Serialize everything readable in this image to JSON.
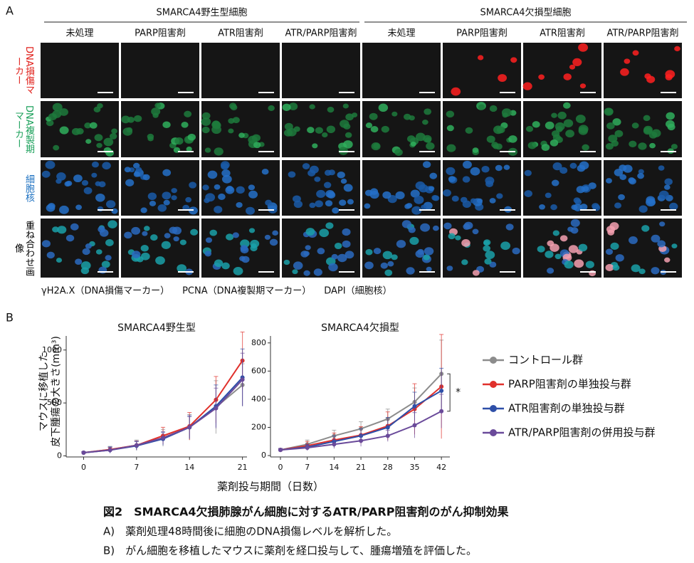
{
  "panel_a": {
    "label": "A",
    "groups": [
      "SMARCA4野生型細胞",
      "SMARCA4欠損型細胞"
    ],
    "columns": [
      "未処理",
      "PARP阻害剤",
      "ATR阻害剤",
      "ATR/PARP阻害剤",
      "未処理",
      "PARP阻害剤",
      "ATR阻害剤",
      "ATR/PARP阻害剤"
    ],
    "rows": [
      {
        "label": "DNA損傷マーカー",
        "color": "#e0201b"
      },
      {
        "label": "DNA複製期マーカー",
        "color": "#1aa05a"
      },
      {
        "label": "細胞核",
        "color": "#1a6fc0"
      },
      {
        "label": "重ね合わせ画像",
        "color": "#000000"
      }
    ],
    "legend": [
      {
        "text": "γH2A.X（DNA損傷マーカー）",
        "color": "#e0201b"
      },
      {
        "text": "PCNA（DNA複製期マーカー）",
        "color": "#1aa05a"
      },
      {
        "text": "DAPI（細胞核）",
        "color": "#1a6fc0"
      }
    ]
  },
  "panel_b": {
    "label": "B",
    "x_label": "薬剤投与期間（日数）",
    "y_label": [
      "マウスに移植した",
      "皮下腫瘍の大きさ(mm³)"
    ]
  },
  "chart_data": [
    {
      "type": "line",
      "title": "SMARCA4野生型",
      "x": [
        0,
        3.5,
        7,
        10.5,
        14,
        17.5,
        21
      ],
      "xlim": [
        -2.3,
        21.6
      ],
      "xticks": [
        0,
        7,
        14,
        21
      ],
      "ylim": [
        -10,
        1200
      ],
      "yticks": [
        0,
        500,
        1000
      ],
      "series": [
        {
          "color": "#8c8c8c",
          "values": [
            30,
            60,
            100,
            170,
            270,
            460,
            670
          ],
          "errors": [
            10,
            30,
            50,
            80,
            120,
            250,
            200
          ]
        },
        {
          "color": "#e0302b",
          "values": [
            30,
            60,
            100,
            190,
            280,
            530,
            900
          ],
          "errors": [
            10,
            20,
            40,
            80,
            130,
            220,
            270
          ]
        },
        {
          "color": "#2e4fa8",
          "values": [
            30,
            55,
            95,
            160,
            270,
            470,
            740
          ],
          "errors": [
            10,
            30,
            40,
            60,
            110,
            200,
            270
          ]
        },
        {
          "color": "#6a4a9a",
          "values": [
            30,
            55,
            100,
            170,
            270,
            450,
            720
          ],
          "errors": [
            10,
            25,
            40,
            60,
            100,
            190,
            250
          ]
        }
      ]
    },
    {
      "type": "line",
      "title": "SMARCA4欠損型",
      "x": [
        0,
        7,
        14,
        21,
        28,
        35,
        42
      ],
      "xlim": [
        -2.6,
        44.2
      ],
      "xticks": [
        0,
        7,
        14,
        21,
        28,
        35,
        42
      ],
      "ylim": [
        -10,
        900
      ],
      "yticks": [
        0,
        200,
        400,
        600,
        800
      ],
      "significance": "*",
      "series": [
        {
          "name": "コントロール群",
          "color": "#8c8c8c",
          "values": [
            40,
            80,
            140,
            190,
            260,
            380,
            580
          ],
          "errors": [
            10,
            30,
            40,
            50,
            70,
            100,
            240
          ]
        },
        {
          "name": "PARP阻害剤の単独投与群",
          "color": "#e0302b",
          "values": [
            40,
            70,
            110,
            145,
            210,
            330,
            490
          ],
          "errors": [
            10,
            30,
            50,
            60,
            100,
            180,
            370
          ]
        },
        {
          "name": "ATR阻害剤の単独投与群",
          "color": "#2e4fa8",
          "values": [
            40,
            60,
            100,
            140,
            200,
            350,
            460
          ],
          "errors": [
            10,
            20,
            40,
            50,
            70,
            100,
            160
          ]
        },
        {
          "name": "ATR/PARP阻害剤の併用投与群",
          "color": "#6a4a9a",
          "values": [
            40,
            55,
            80,
            105,
            140,
            215,
            315
          ],
          "errors": [
            10,
            20,
            30,
            40,
            40,
            90,
            120
          ]
        }
      ]
    }
  ],
  "caption": {
    "title": "図2　SMARCA4欠損肺腺がん細胞に対するATR/PARP阻害剤のがん抑制効果",
    "lines": [
      "A)　薬剤処理48時間後に細胞のDNA損傷レベルを解析した。",
      "B)　がん細胞を移植したマウスに薬剤を経口投与して、腫瘍増殖を評価した。"
    ]
  }
}
